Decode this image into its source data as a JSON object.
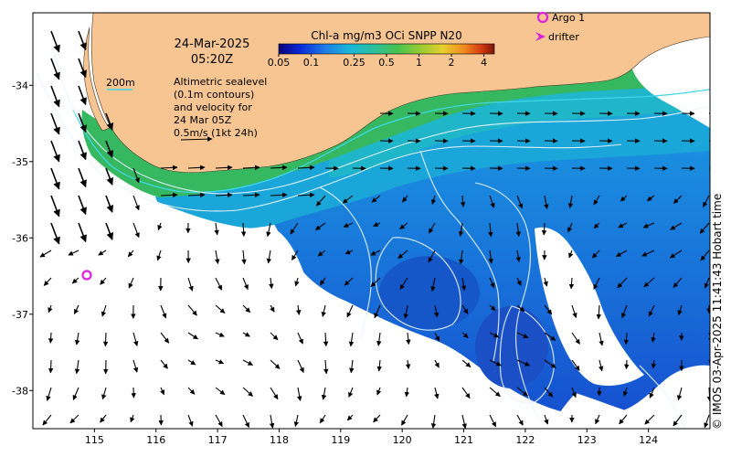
{
  "title": {
    "date": "24-Mar-2025",
    "time": "05:20Z"
  },
  "colorbar": {
    "title": "Chl-a mg/m3 OCi SNPP N20",
    "ticks": [
      "0.05",
      "0.1",
      "0.25",
      "0.5",
      "1",
      "2",
      "4"
    ],
    "min": 0.05,
    "max": 5,
    "scale": "log",
    "colors": [
      "#08007a",
      "#0a2ad8",
      "#1f7fe8",
      "#19b8d8",
      "#2fc09a",
      "#46c24e",
      "#9acb32",
      "#e6cf2e",
      "#f08a1e",
      "#d43a12",
      "#7a1606"
    ]
  },
  "legend": {
    "argo_label": "Argo 1",
    "drifter_label": "drifter",
    "argo_color": "#e020e0",
    "drifter_color": "#e020e0"
  },
  "contour_legend": {
    "label": "200m",
    "color": "#3fd6e8"
  },
  "annotation": {
    "line1": "Altimetric sealevel",
    "line2": "(0.1m contours)",
    "line3": "and velocity for",
    "line4": "24 Mar 05Z",
    "line5": "0.5m/s (1kt 24h)"
  },
  "axes": {
    "x_ticks": [
      "115",
      "116",
      "117",
      "118",
      "119",
      "120",
      "121",
      "122",
      "123",
      "124"
    ],
    "y_ticks": [
      "-34",
      "-35",
      "-36",
      "-37",
      "-38"
    ],
    "lon_range": [
      114,
      125
    ],
    "lat_range": [
      -38.5,
      -33.05
    ]
  },
  "copyright": "© IMOS 03-Apr-2025 11:41:43 Hobart time",
  "colors": {
    "land": "#f6c592",
    "ocean_deep": "#1b66d6",
    "ocean_shelf": "#22b9c8",
    "ocean_coastal": "#3fbf5a",
    "cloud": "#ffffff",
    "contour": "#e8f4ff",
    "argo_marker": "#e020e0"
  }
}
